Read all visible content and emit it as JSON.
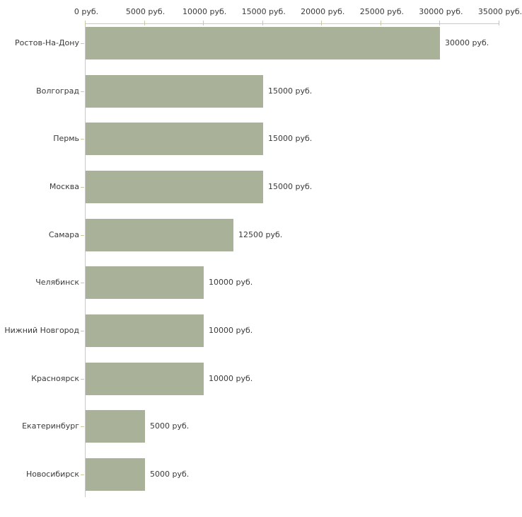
{
  "chart_data": {
    "type": "bar",
    "orientation": "horizontal",
    "title": "",
    "xlabel": "",
    "ylabel": "",
    "categories": [
      "Ростов-На-Дону",
      "Волгоград",
      "Пермь",
      "Москва",
      "Самара",
      "Челябинск",
      "Нижний Новгород",
      "Красноярск",
      "Екатеринбург",
      "Новосибирск"
    ],
    "values": [
      30000,
      15000,
      15000,
      15000,
      12500,
      10000,
      10000,
      10000,
      5000,
      5000
    ],
    "value_labels": [
      "30000 руб.",
      "15000 руб.",
      "15000 руб.",
      "15000 руб.",
      "12500 руб.",
      "10000 руб.",
      "10000 руб.",
      "10000 руб.",
      "5000 руб.",
      "5000 руб."
    ],
    "x_tick_values": [
      0,
      5000,
      10000,
      15000,
      20000,
      25000,
      30000,
      35000
    ],
    "x_tick_labels": [
      "0 руб.",
      "5000 руб.",
      "10000 руб.",
      "15000 руб.",
      "20000 руб.",
      "25000 руб.",
      "30000 руб.",
      "35000 руб."
    ],
    "xlim": [
      0,
      35000
    ],
    "grid": false,
    "legend": false,
    "unit": "руб.",
    "colors": {
      "bar": "#aab199",
      "axis_line": "#c9c9c9",
      "tick_mark": "#c9c99c",
      "text": "#3a3a3a",
      "background": "#ffffff"
    }
  }
}
